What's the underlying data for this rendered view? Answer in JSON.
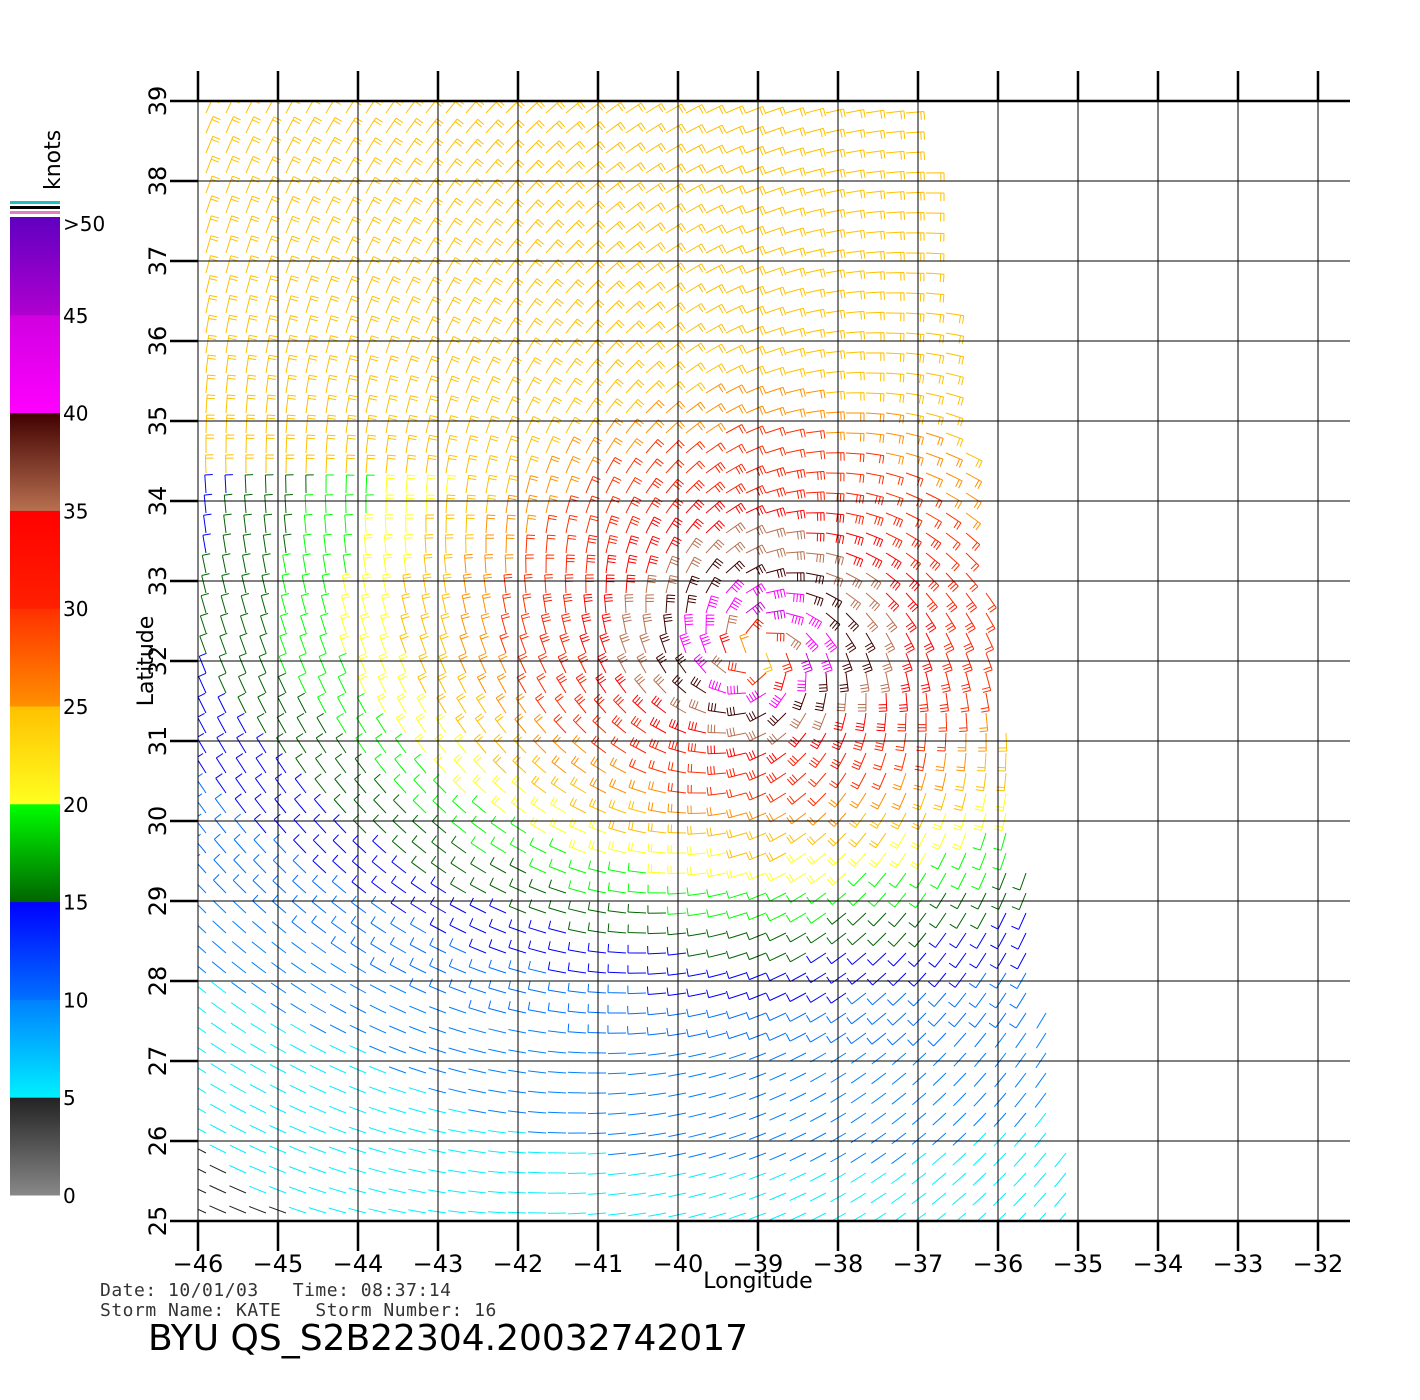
{
  "chart_data": {
    "type": "wind-barb",
    "xlabel": "Longitude",
    "ylabel": "Latitude",
    "xlim": [
      -46,
      -32
    ],
    "ylim": [
      25,
      39
    ],
    "x_ticks": [
      -46,
      -45,
      -44,
      -43,
      -42,
      -41,
      -40,
      -39,
      -38,
      -37,
      -36,
      -35,
      -34,
      -33,
      -32
    ],
    "y_ticks": [
      25,
      26,
      27,
      28,
      29,
      30,
      31,
      32,
      33,
      34,
      35,
      36,
      37,
      38,
      39
    ],
    "grid": true,
    "storm_center": {
      "lon": -39.0,
      "lat": 32.1
    },
    "swath_lon_range_north": [
      -46,
      -37
    ],
    "swath_lon_range_south": [
      -46,
      -35
    ],
    "colorbar": {
      "title": "knots",
      "bands": [
        {
          "min": 0,
          "max": 5,
          "colors": [
            "#888888",
            "#222222"
          ]
        },
        {
          "min": 5,
          "max": 10,
          "colors": [
            "#00f0ff",
            "#0080ff"
          ]
        },
        {
          "min": 10,
          "max": 15,
          "colors": [
            "#0070ff",
            "#0000ff"
          ]
        },
        {
          "min": 15,
          "max": 20,
          "colors": [
            "#006400",
            "#00ff00"
          ]
        },
        {
          "min": 20,
          "max": 25,
          "colors": [
            "#ffff20",
            "#ffc000"
          ]
        },
        {
          "min": 25,
          "max": 30,
          "colors": [
            "#ff9000",
            "#ff3000"
          ]
        },
        {
          "min": 30,
          "max": 35,
          "colors": [
            "#ff2000",
            "#ff0000"
          ]
        },
        {
          "min": 35,
          "max": 40,
          "colors": [
            "#b87050",
            "#400000"
          ]
        },
        {
          "min": 40,
          "max": 45,
          "colors": [
            "#ff00ff",
            "#d000e0"
          ]
        },
        {
          "min": 45,
          "max": 50,
          "colors": [
            "#b000d0",
            "#6000c0"
          ]
        }
      ],
      "labels": [
        "0",
        "5",
        "10",
        "15",
        "20",
        "25",
        "30",
        "35",
        "40",
        "45",
        ">50"
      ]
    }
  },
  "info": {
    "date_line": "Date: 10/01/03   Time: 08:37:14",
    "storm_line": "Storm Name: KATE   Storm Number: 16",
    "title": "BYU QS_S2B22304.20032742017"
  }
}
